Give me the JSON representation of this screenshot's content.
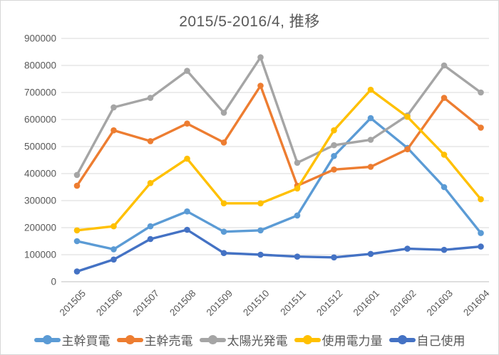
{
  "title": "2015/5-2016/4, 推移",
  "palette": {
    "gridline": "#d9d9d9",
    "axis_line": "#bfbfbf",
    "axis_text": "#595959",
    "title_text": "#595959",
    "background": "#ffffff"
  },
  "chart_data": {
    "type": "line",
    "title": "2015/5-2016/4, 推移",
    "xlabel": "",
    "ylabel": "",
    "ylim": [
      0,
      900000
    ],
    "ytick_step": 100000,
    "yticks": [
      "0",
      "100000",
      "200000",
      "300000",
      "400000",
      "500000",
      "600000",
      "700000",
      "800000",
      "900000"
    ],
    "grid": true,
    "marker": "circle",
    "legend_position": "bottom",
    "categories": [
      "201505",
      "201506",
      "201507",
      "201508",
      "201509",
      "201510",
      "201511",
      "201512",
      "201601",
      "201602",
      "201603",
      "201604"
    ],
    "series": [
      {
        "name": "主幹買電",
        "color": "#5B9BD5",
        "values": [
          150000,
          120000,
          205000,
          260000,
          185000,
          190000,
          245000,
          465000,
          605000,
          495000,
          350000,
          180000
        ]
      },
      {
        "name": "主幹売電",
        "color": "#ED7D31",
        "values": [
          355000,
          560000,
          520000,
          585000,
          515000,
          725000,
          355000,
          415000,
          425000,
          490000,
          680000,
          570000
        ]
      },
      {
        "name": "太陽光発電",
        "color": "#A5A5A5",
        "values": [
          395000,
          645000,
          680000,
          780000,
          625000,
          830000,
          440000,
          505000,
          525000,
          615000,
          800000,
          700000
        ]
      },
      {
        "name": "使用電力量",
        "color": "#FFC000",
        "values": [
          190000,
          205000,
          365000,
          455000,
          290000,
          290000,
          345000,
          560000,
          710000,
          610000,
          470000,
          305000
        ]
      },
      {
        "name": "自己使用",
        "color": "#4472C4",
        "values": [
          38000,
          82000,
          158000,
          192000,
          106000,
          100000,
          93000,
          90000,
          103000,
          122000,
          118000,
          130000
        ]
      }
    ]
  }
}
